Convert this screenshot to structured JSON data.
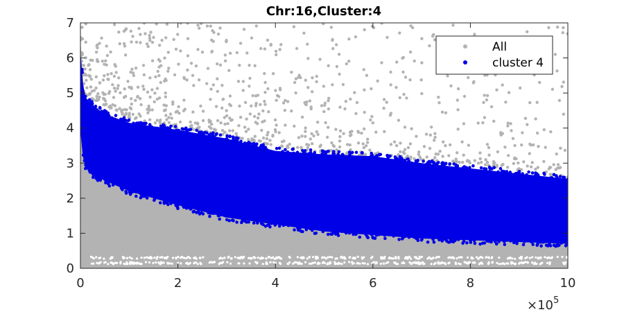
{
  "chart_data": {
    "type": "scatter",
    "title": "Chr:16,Cluster:4",
    "xlabel": "",
    "ylabel": "",
    "xlim": [
      0,
      1000000
    ],
    "ylim": [
      0,
      7
    ],
    "x_ticks": [
      0,
      200000,
      400000,
      600000,
      800000,
      1000000
    ],
    "x_tick_labels": [
      "0",
      "2",
      "4",
      "6",
      "8",
      "10"
    ],
    "x_multiplier": {
      "prefix": "×10",
      "exponent": "5"
    },
    "y_ticks": [
      0,
      1,
      2,
      3,
      4,
      5,
      6,
      7
    ],
    "y_tick_labels": [
      "0",
      "1",
      "2",
      "3",
      "4",
      "5",
      "6",
      "7"
    ],
    "grid": false,
    "legend": {
      "position": "top-right"
    },
    "colors": {
      "all": "#b3b3b3",
      "cluster": "#0000e6",
      "axis": "#262626"
    },
    "series": [
      {
        "name": "All",
        "color": "#b3b3b3",
        "envelope": {
          "x": [
            0,
            10000,
            20000,
            50000,
            100000,
            200000,
            300000,
            400000,
            500000,
            600000,
            700000,
            800000,
            900000,
            1000000
          ],
          "y_low": [
            0.0,
            0.0,
            0.0,
            0.0,
            0.0,
            0.0,
            0.0,
            0.0,
            0.0,
            0.0,
            0.0,
            0.0,
            0.0,
            0.0
          ],
          "y_high": [
            6.5,
            4.5,
            3.3,
            2.6,
            2.3,
            1.9,
            1.6,
            1.4,
            1.25,
            1.1,
            1.0,
            0.95,
            0.85,
            0.8
          ]
        },
        "sparse_band": {
          "x": [
            0,
            100000,
            200000,
            300000,
            400000,
            500000,
            600000,
            700000,
            800000,
            900000,
            1000000
          ],
          "y_low": [
            5.0,
            4.3,
            4.0,
            3.8,
            3.5,
            3.3,
            3.2,
            3.1,
            3.0,
            2.8,
            2.6
          ],
          "y_high": [
            7.0,
            7.0,
            7.0,
            7.0,
            7.0,
            7.0,
            7.0,
            7.0,
            7.0,
            7.0,
            7.0
          ]
        }
      },
      {
        "name": "cluster 4",
        "color": "#0000e6",
        "envelope": {
          "x": [
            0,
            5000,
            10000,
            20000,
            50000,
            100000,
            150000,
            200000,
            300000,
            400000,
            500000,
            600000,
            700000,
            800000,
            900000,
            1000000
          ],
          "y_low": [
            3.9,
            3.2,
            2.9,
            2.7,
            2.5,
            2.2,
            2.0,
            1.8,
            1.45,
            1.25,
            1.05,
            0.95,
            0.85,
            0.8,
            0.75,
            0.7
          ],
          "y_high": [
            6.2,
            5.3,
            4.9,
            4.7,
            4.4,
            4.15,
            4.05,
            3.95,
            3.7,
            3.35,
            3.25,
            3.2,
            3.0,
            2.85,
            2.7,
            2.55
          ]
        }
      }
    ]
  }
}
